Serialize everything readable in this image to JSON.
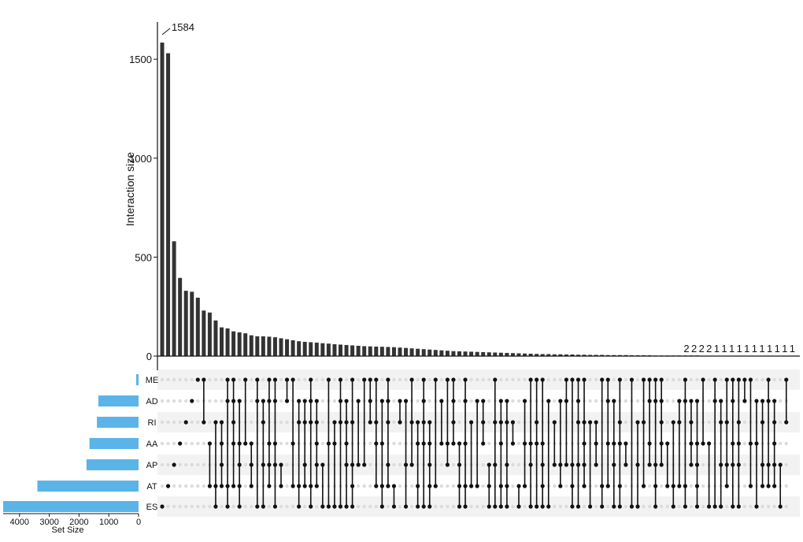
{
  "chart_data": {
    "type": "bar",
    "chart_kind": "upset",
    "ylabel": "Interaction size",
    "ylim": [
      0,
      1620
    ],
    "yticks": [
      0,
      500,
      1000,
      1500
    ],
    "top_bar_annotation": "1584",
    "tail_labels": [
      "2",
      "2",
      "2",
      "2",
      "1",
      "1",
      "1",
      "1",
      "1",
      "1",
      "1",
      "1",
      "1",
      "1",
      "1"
    ],
    "values": [
      1584,
      1530,
      580,
      395,
      330,
      325,
      295,
      230,
      220,
      180,
      145,
      140,
      125,
      120,
      115,
      105,
      100,
      100,
      98,
      95,
      90,
      85,
      80,
      75,
      72,
      70,
      68,
      65,
      63,
      60,
      58,
      56,
      54,
      52,
      50,
      49,
      48,
      47,
      46,
      45,
      43,
      41,
      39,
      37,
      35,
      33,
      31,
      29,
      27,
      25,
      24,
      23,
      22,
      21,
      20,
      19,
      18,
      17,
      16,
      15,
      14,
      13,
      12,
      11,
      10,
      10,
      9,
      9,
      8,
      8,
      7,
      7,
      6,
      6,
      6,
      5,
      5,
      5,
      5,
      4,
      4,
      4,
      4,
      3,
      3,
      3,
      3,
      3,
      3,
      3,
      3,
      2,
      2,
      2,
      2,
      1,
      1,
      1,
      1,
      1,
      1,
      1,
      1,
      1,
      1,
      1
    ],
    "sets": [
      "ME",
      "AD",
      "RI",
      "AA",
      "AP",
      "AT",
      "ES"
    ],
    "set_sizes": [
      80,
      1350,
      1400,
      1650,
      1750,
      3400,
      4550
    ],
    "set_size_label": "Set Size",
    "set_size_ticks": [
      4000,
      3000,
      2000,
      1000,
      0
    ],
    "set_size_xlim": [
      4550,
      0
    ],
    "colors": {
      "bar": "#333333",
      "set_bar": "#5bb4e8",
      "dot": "#111111",
      "empty_dot": "#dcdcdc",
      "stripe": "#f2f2f2"
    }
  }
}
